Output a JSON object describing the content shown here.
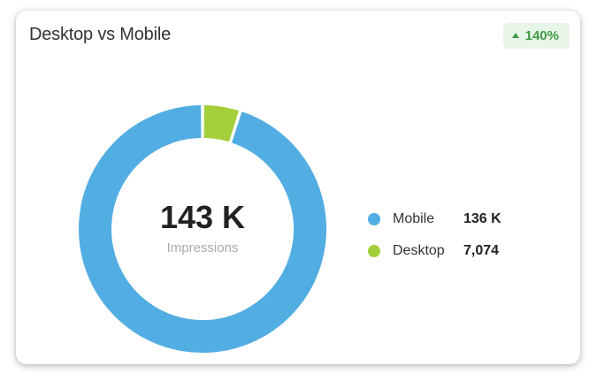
{
  "card": {
    "title": "Desktop vs Mobile",
    "badge": "140%",
    "badge_icon": "triangle-up-icon",
    "badge_color": "#3e9b47"
  },
  "chart_data": {
    "type": "pie",
    "donut": true,
    "center_value": "143 K",
    "center_label": "Impressions",
    "legend_placement": "right",
    "slices": [
      {
        "name": "Mobile",
        "value": 136000,
        "display": "136 K",
        "color": "#52ade2"
      },
      {
        "name": "Desktop",
        "value": 7074,
        "display": "7,074",
        "color": "#a4cf3a"
      }
    ]
  }
}
